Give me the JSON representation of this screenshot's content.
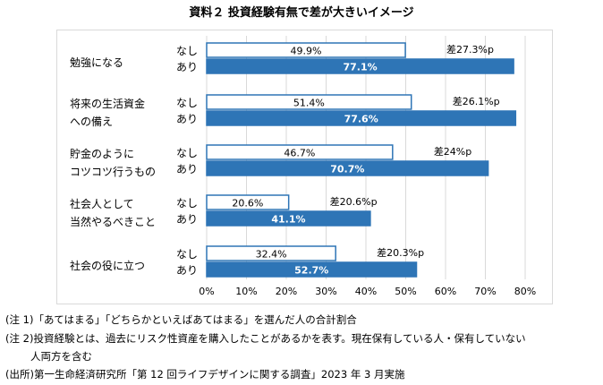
{
  "chart_data": {
    "type": "bar",
    "title": "資料２ 投資経験有無で差が大きいイメージ",
    "categories": [
      [
        "勉強になる"
      ],
      [
        "将来の生活資金",
        "への備え"
      ],
      [
        "貯金のように",
        "コツコツ行うもの"
      ],
      [
        "社会人として",
        "当然やるべきこと"
      ],
      [
        "社会の役に立つ"
      ]
    ],
    "series": [
      {
        "name": "なし",
        "values": [
          49.9,
          51.4,
          46.7,
          20.6,
          32.4
        ],
        "labels": [
          "49.9%",
          "51.4%",
          "46.7%",
          "20.6%",
          "32.4%"
        ],
        "color": "#ffffff",
        "border": "#2e75b6"
      },
      {
        "name": "あり",
        "values": [
          77.1,
          77.6,
          70.7,
          41.1,
          52.7
        ],
        "labels": [
          "77.1%",
          "77.6%",
          "70.7%",
          "41.1%",
          "52.7%"
        ],
        "color": "#2e75b6"
      }
    ],
    "diff_labels": [
      "差27.3%p",
      "差26.1%p",
      "差24%p",
      "差20.6%p",
      "差20.3%p"
    ],
    "xlim": [
      0,
      80
    ],
    "ticks": [
      "0%",
      "10%",
      "20%",
      "30%",
      "40%",
      "50%",
      "60%",
      "70%",
      "80%"
    ],
    "grid": true
  },
  "notes": [
    "(注 1)「あてはまる」「どちらかといえばあてはまる」を選んだ人の合計割合",
    "(注 2)投資経験とは、過去にリスク性資産を購入したことがあるかを表す。現在保有している人・保有していない",
    "人両方を含む",
    "(出所)第一生命経済研究所「第 12 回ライフデザインに関する調査」2023 年 3 月実施"
  ]
}
